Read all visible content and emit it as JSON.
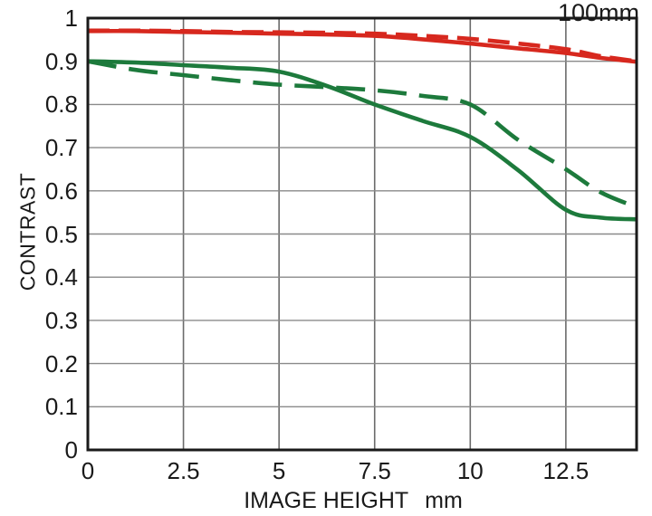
{
  "title": "100mm",
  "axes": {
    "y_label": "CONTRAST",
    "x_label": "IMAGE HEIGHT",
    "x_unit": "mm"
  },
  "colors": {
    "red": "#d7281e",
    "green": "#1d7a3c",
    "frame": "#1a1a1a",
    "grid_h": "#8a8a8a",
    "grid_v": "#6b6b6b",
    "text": "#1a1a1a",
    "background": "#ffffff"
  },
  "chart_data": {
    "type": "line",
    "title": "100mm",
    "xlabel": "IMAGE HEIGHT mm",
    "ylabel": "CONTRAST",
    "xlim": [
      0,
      14.35
    ],
    "ylim": [
      0,
      1
    ],
    "grid": true,
    "legend": "none",
    "x_ticks": [
      0,
      2.5,
      5,
      7.5,
      10,
      12.5
    ],
    "x_tick_labels": [
      "0",
      "2.5",
      "5",
      "7.5",
      "10",
      "12.5"
    ],
    "y_ticks": [
      0,
      0.1,
      0.2,
      0.3,
      0.4,
      0.5,
      0.6,
      0.7,
      0.8,
      0.9,
      1
    ],
    "y_tick_labels": [
      "0",
      "0.1",
      "0.2",
      "0.3",
      "0.4",
      "0.5",
      "0.6",
      "0.7",
      "0.8",
      "0.9",
      "1"
    ],
    "x": [
      0,
      1.25,
      2.5,
      3.75,
      5,
      6.25,
      7.5,
      8.75,
      10,
      11.25,
      12.5,
      13.4,
      14.35
    ],
    "series": [
      {
        "name": "red-solid",
        "color": "#d7281e",
        "line_style": "solid",
        "dash": null,
        "values": [
          0.97,
          0.97,
          0.968,
          0.966,
          0.964,
          0.962,
          0.959,
          0.951,
          0.941,
          0.93,
          0.919,
          0.908,
          0.899
        ]
      },
      {
        "name": "red-dashed",
        "color": "#d7281e",
        "line_style": "dashed",
        "dash": "24 10",
        "values": [
          0.971,
          0.971,
          0.97,
          0.968,
          0.967,
          0.966,
          0.964,
          0.959,
          0.952,
          0.941,
          0.928,
          0.912,
          0.9
        ]
      },
      {
        "name": "green-solid",
        "color": "#1d7a3c",
        "line_style": "solid",
        "dash": null,
        "values": [
          0.9,
          0.897,
          0.891,
          0.885,
          0.876,
          0.843,
          0.8,
          0.762,
          0.725,
          0.648,
          0.556,
          0.538,
          0.534
        ]
      },
      {
        "name": "green-dashed",
        "color": "#1d7a3c",
        "line_style": "dashed",
        "dash": "32 14",
        "values": [
          0.9,
          0.88,
          0.868,
          0.856,
          0.846,
          0.84,
          0.833,
          0.82,
          0.8,
          0.718,
          0.65,
          0.597,
          0.562
        ]
      }
    ]
  }
}
